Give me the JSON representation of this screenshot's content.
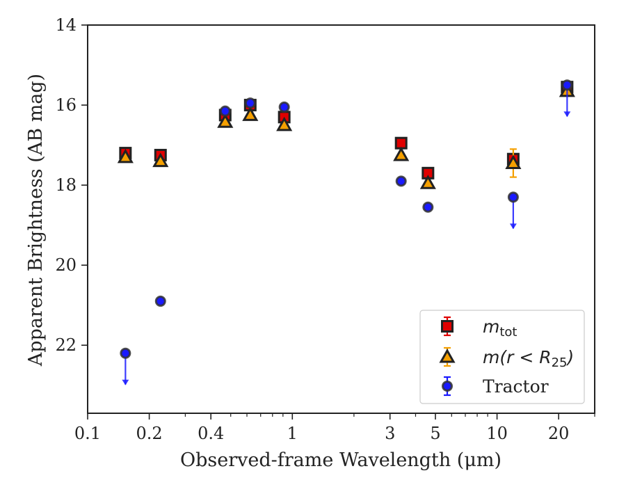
{
  "chart_data": {
    "type": "scatter",
    "title": "",
    "xlabel": "Observed-frame Wavelength (μm)",
    "ylabel": "Apparent Brightness (AB mag)",
    "xscale": "log",
    "xlim": [
      0.1,
      30
    ],
    "ylim": [
      23.7,
      14
    ],
    "y_inverted": true,
    "x_ticks": [
      {
        "value": 0.1,
        "label": "0.1"
      },
      {
        "value": 0.2,
        "label": "0.2"
      },
      {
        "value": 0.4,
        "label": "0.4"
      },
      {
        "value": 1,
        "label": "1"
      },
      {
        "value": 3,
        "label": "3"
      },
      {
        "value": 5,
        "label": "5"
      },
      {
        "value": 10,
        "label": "10"
      },
      {
        "value": 20,
        "label": "20"
      }
    ],
    "x_minor_ticks": [
      0.3,
      0.5,
      0.6,
      0.7,
      0.8,
      0.9,
      2,
      4,
      6,
      7,
      8,
      9,
      30
    ],
    "y_ticks": [
      {
        "value": 14,
        "label": "14"
      },
      {
        "value": 16,
        "label": "16"
      },
      {
        "value": 18,
        "label": "18"
      },
      {
        "value": 20,
        "label": "20"
      },
      {
        "value": 22,
        "label": "22"
      }
    ],
    "legend_position": "lower-right",
    "series": [
      {
        "name": "m_tot",
        "marker": "square",
        "color": "#e00000",
        "edge": "#222222",
        "x": [
          0.153,
          0.227,
          0.47,
          0.623,
          0.913,
          3.4,
          4.6,
          12.0,
          22.0
        ],
        "y": [
          17.2,
          17.25,
          16.25,
          16.0,
          16.3,
          16.95,
          17.7,
          17.35,
          15.55
        ],
        "yerr": [
          0,
          0,
          0,
          0,
          0,
          0,
          0,
          0,
          0
        ],
        "upper_limit": [
          false,
          false,
          false,
          false,
          false,
          false,
          false,
          false,
          false
        ]
      },
      {
        "name": "m(r<R25)",
        "marker": "triangle",
        "color": "#f5a000",
        "edge": "#222222",
        "x": [
          0.153,
          0.227,
          0.47,
          0.623,
          0.913,
          3.4,
          4.6,
          12.0,
          22.0
        ],
        "y": [
          17.3,
          17.4,
          16.42,
          16.25,
          16.5,
          17.25,
          17.95,
          17.45,
          15.65
        ],
        "yerr": [
          0,
          0,
          0,
          0,
          0,
          0,
          0,
          0.35,
          0.12
        ],
        "upper_limit": [
          false,
          false,
          false,
          false,
          false,
          false,
          false,
          false,
          false
        ]
      },
      {
        "name": "Tractor",
        "marker": "circle",
        "color": "#1a1aff",
        "edge": "#333333",
        "x": [
          0.153,
          0.227,
          0.47,
          0.623,
          0.913,
          3.4,
          4.6,
          12.0,
          22.0
        ],
        "y": [
          22.2,
          20.9,
          16.15,
          15.95,
          16.05,
          17.9,
          18.55,
          18.3,
          15.5
        ],
        "yerr": [
          0,
          0,
          0,
          0,
          0,
          0,
          0,
          0,
          0
        ],
        "upper_limit": [
          true,
          false,
          false,
          false,
          false,
          false,
          false,
          true,
          true
        ]
      }
    ]
  },
  "legend": [
    {
      "marker": "square",
      "label_main": "m",
      "label_sub": "tot",
      "label_rest": ""
    },
    {
      "marker": "triangle",
      "label_main": "m(r < R",
      "label_sub": "25",
      "label_rest": ")"
    },
    {
      "marker": "circle",
      "label_main": "Tractor",
      "label_sub": "",
      "label_rest": ""
    }
  ]
}
